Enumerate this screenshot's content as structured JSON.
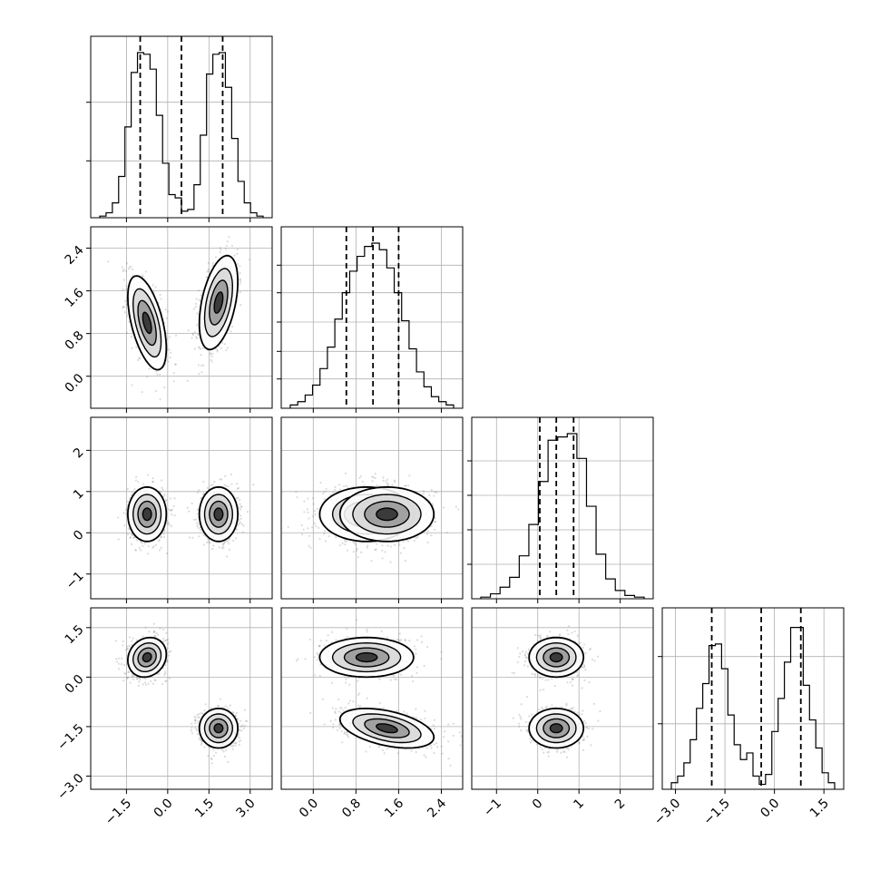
{
  "chart_data": {
    "type": "corner",
    "n_params": 4,
    "grid": true,
    "style": {
      "line_color": "#000000",
      "grid_color": "#b0b0b0",
      "scatter_color": "#7f7f7f",
      "fill_color": "#ffffff",
      "density_color": "#303030"
    },
    "ranges": [
      [
        -2.8,
        3.8
      ],
      [
        -0.6,
        2.8
      ],
      [
        -1.6,
        2.8
      ],
      [
        -3.4,
        2.1
      ]
    ],
    "ticks": [
      {
        "values": [
          -1.5,
          0.0,
          1.5,
          3.0
        ],
        "labels": [
          "−1.5",
          "0.0",
          "1.5",
          "3.0"
        ]
      },
      {
        "values": [
          0.0,
          0.8,
          1.6,
          2.4
        ],
        "labels": [
          "0.0",
          "0.8",
          "1.6",
          "2.4"
        ]
      },
      {
        "values": [
          -1,
          0,
          1,
          2
        ],
        "labels": [
          "−1",
          "0",
          "1",
          "2"
        ]
      },
      {
        "values": [
          -3.0,
          -1.5,
          0.0,
          1.5
        ],
        "labels": [
          "−3.0",
          "−1.5",
          "0.0",
          "1.5"
        ]
      }
    ],
    "quantiles": [
      [
        -1.0,
        0.5,
        2.0
      ],
      [
        0.62,
        1.12,
        1.6
      ],
      [
        0.05,
        0.45,
        0.87
      ],
      [
        -1.9,
        -0.4,
        0.8
      ]
    ],
    "histograms": [
      {
        "counts": [
          0.01,
          0.03,
          0.09,
          0.25,
          0.55,
          0.88,
          1.0,
          0.99,
          0.9,
          0.62,
          0.33,
          0.14,
          0.12,
          0.04,
          0.05,
          0.2,
          0.5,
          0.87,
          0.99,
          1.0,
          0.79,
          0.48,
          0.22,
          0.09,
          0.03,
          0.01
        ],
        "yticks": [
          0.33,
          0.67
        ]
      },
      {
        "counts": [
          0.02,
          0.04,
          0.08,
          0.14,
          0.24,
          0.37,
          0.54,
          0.7,
          0.83,
          0.92,
          0.98,
          1.0,
          0.96,
          0.85,
          0.7,
          0.53,
          0.36,
          0.22,
          0.13,
          0.07,
          0.04,
          0.02
        ],
        "yticks": [
          0.17,
          0.33,
          0.5,
          0.67,
          0.83
        ]
      },
      {
        "counts": [
          0.01,
          0.03,
          0.07,
          0.13,
          0.26,
          0.45,
          0.71,
          0.96,
          0.98,
          1.0,
          0.85,
          0.56,
          0.27,
          0.12,
          0.05,
          0.02,
          0.01
        ],
        "yticks": [
          0.2,
          0.4,
          0.6,
          0.8
        ]
      },
      {
        "counts": [
          0.04,
          0.08,
          0.16,
          0.3,
          0.49,
          0.64,
          0.87,
          0.88,
          0.73,
          0.45,
          0.27,
          0.18,
          0.22,
          0.08,
          0.03,
          0.09,
          0.35,
          0.55,
          0.77,
          0.98,
          0.98,
          0.63,
          0.42,
          0.25,
          0.1,
          0.04
        ],
        "yticks": [
          0.38,
          0.77
        ]
      }
    ],
    "clusters": [
      {
        "means": [
          -0.75,
          1.0,
          0.45,
          0.6
        ],
        "sds": [
          0.35,
          0.44,
          0.33,
          0.3
        ],
        "corr": [
          [
            0,
            1,
            -0.55
          ],
          [
            0,
            3,
            0.15
          ]
        ]
      },
      {
        "means": [
          1.85,
          1.38,
          0.45,
          -1.55
        ],
        "sds": [
          0.35,
          0.44,
          0.33,
          0.3
        ],
        "corr": [
          [
            0,
            1,
            0.45
          ],
          [
            1,
            3,
            -0.45
          ]
        ]
      }
    ]
  }
}
